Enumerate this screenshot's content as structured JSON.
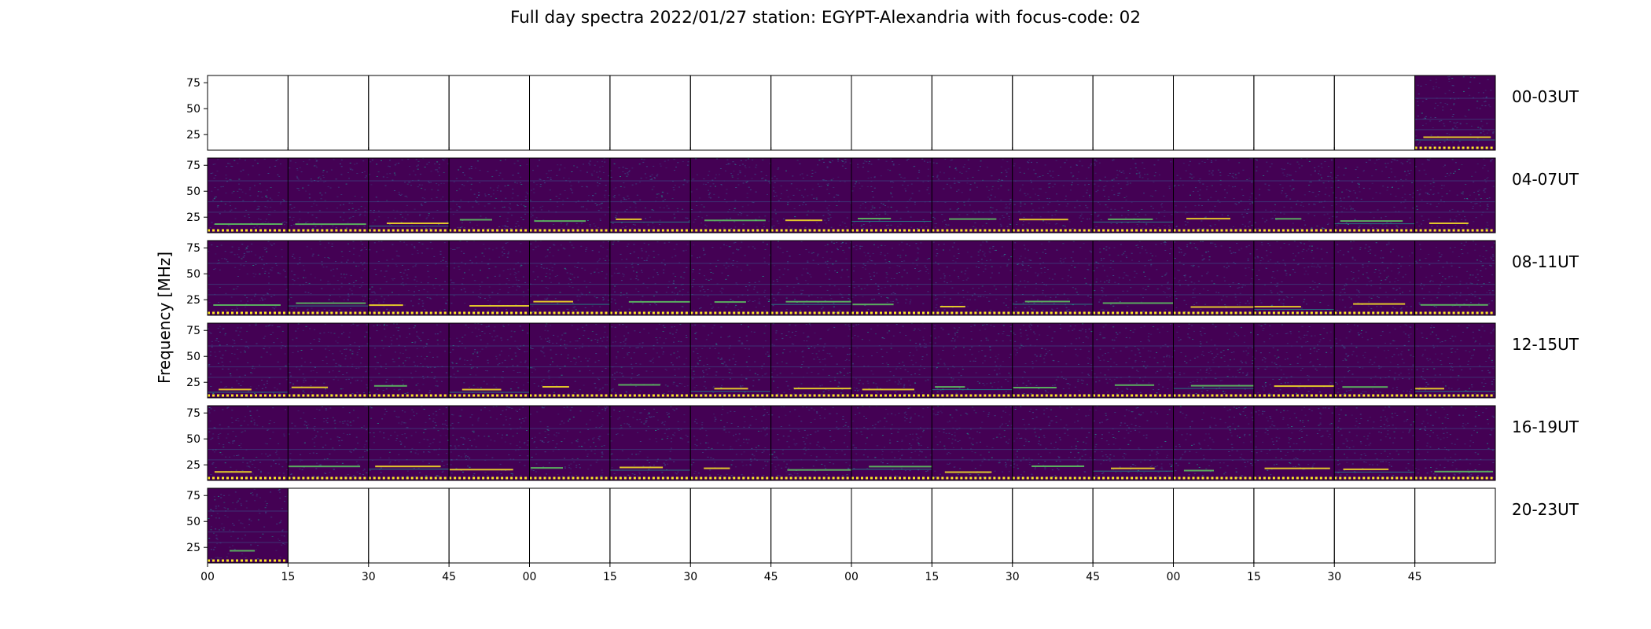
{
  "chart_data": {
    "type": "heatmap",
    "title": "Full day spectra 2022/01/27 station: EGYPT-Alexandria with focus-code: 02",
    "ylabel": "Frequency [MHz]",
    "yticks": [
      25,
      50,
      75
    ],
    "ylim": [
      10,
      82
    ],
    "xticks": [
      "00",
      "15",
      "30",
      "45",
      "00",
      "15",
      "30",
      "45",
      "00",
      "15",
      "30",
      "45",
      "00",
      "15",
      "30",
      "45"
    ],
    "rows": [
      {
        "label": "00-03UT",
        "filled": [
          15
        ]
      },
      {
        "label": "04-07UT",
        "filled": "all"
      },
      {
        "label": "08-11UT",
        "filled": "all"
      },
      {
        "label": "12-15UT",
        "filled": "all"
      },
      {
        "label": "16-19UT",
        "filled": "all"
      },
      {
        "label": "20-23UT",
        "filled": [
          0
        ]
      }
    ],
    "panels_per_row": 16,
    "colormap": [
      "#440154",
      "#3b528b",
      "#21918c",
      "#5ec962",
      "#fde725"
    ],
    "background_color": "#440154"
  }
}
